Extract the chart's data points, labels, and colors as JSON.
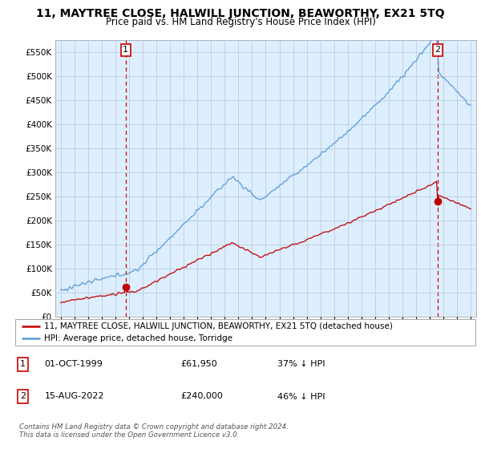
{
  "title": "11, MAYTREE CLOSE, HALWILL JUNCTION, BEAWORTHY, EX21 5TQ",
  "subtitle": "Price paid vs. HM Land Registry's House Price Index (HPI)",
  "title_fontsize": 10,
  "subtitle_fontsize": 8.5,
  "sale1_yr": 1999.75,
  "sale1_price": 61950,
  "sale2_yr": 2022.583,
  "sale2_price": 240000,
  "ylim": [
    0,
    575000
  ],
  "yticks": [
    0,
    50000,
    100000,
    150000,
    200000,
    250000,
    300000,
    350000,
    400000,
    450000,
    500000,
    550000
  ],
  "ytick_labels": [
    "£0",
    "£50K",
    "£100K",
    "£150K",
    "£200K",
    "£250K",
    "£300K",
    "£350K",
    "£400K",
    "£450K",
    "£500K",
    "£550K"
  ],
  "hpi_color": "#5b9bd5",
  "sale_color": "#c00000",
  "dashed_color": "#cc0000",
  "bg_color": "#ddeeff",
  "grid_color": "#bbccdd",
  "legend1_label": "11, MAYTREE CLOSE, HALWILL JUNCTION, BEAWORTHY, EX21 5TQ (detached house)",
  "legend2_label": "HPI: Average price, detached house, Torridge",
  "footnote": "Contains HM Land Registry data © Crown copyright and database right 2024.\nThis data is licensed under the Open Government Licence v3.0.",
  "table_rows": [
    {
      "num": "1",
      "date": "01-OCT-1999",
      "price": "£61,950",
      "hpi": "37% ↓ HPI"
    },
    {
      "num": "2",
      "date": "15-AUG-2022",
      "price": "£240,000",
      "hpi": "46% ↓ HPI"
    }
  ]
}
